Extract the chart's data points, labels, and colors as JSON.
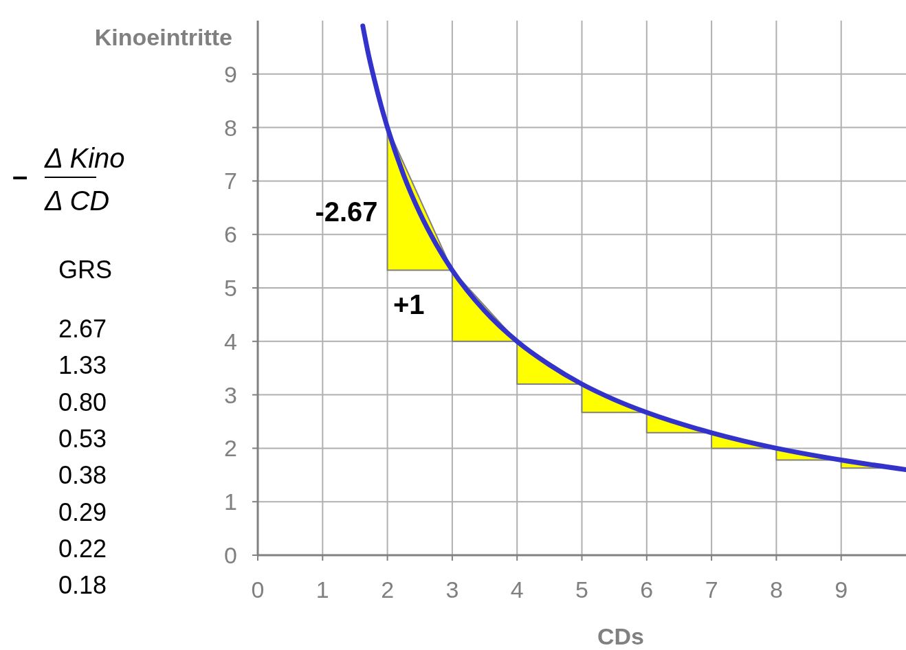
{
  "chart_data": {
    "type": "line",
    "xlabel": "CDs",
    "ylabel": "Kinoeintritte",
    "xlim": [
      0,
      10
    ],
    "ylim": [
      0,
      10
    ],
    "xticks": [
      0,
      1,
      2,
      3,
      4,
      5,
      6,
      7,
      8,
      9
    ],
    "yticks": [
      0,
      1,
      2,
      3,
      4,
      5,
      6,
      7,
      8,
      9
    ],
    "grid": true,
    "series": [
      {
        "type": "area",
        "color": "#ffff00",
        "x": [
          2,
          3,
          4,
          5,
          6,
          7,
          8,
          9,
          9.8
        ],
        "values": [
          8,
          5.33,
          4,
          3.2,
          2.67,
          2.29,
          2,
          1.78,
          1.63
        ]
      },
      {
        "color": "#3333cc",
        "x": [
          1.62,
          1.7,
          1.8,
          1.9,
          2,
          2.25,
          2.5,
          2.75,
          3,
          3.5,
          4,
          4.5,
          5,
          5.5,
          6,
          7,
          8,
          9,
          10
        ],
        "values": [
          9.9,
          9.41,
          8.89,
          8.42,
          8,
          7.11,
          6.4,
          5.82,
          5.33,
          4.57,
          4,
          3.56,
          3.2,
          2.91,
          2.67,
          2.29,
          2,
          1.78,
          1.6
        ]
      }
    ],
    "annotations": [
      {
        "text": "-2.67",
        "x": 2,
        "y": 6.4
      },
      "+1",
      "–",
      "Δ Kino",
      "Δ CD",
      "GRS",
      "2.67",
      "1.33",
      "0.80",
      "0.53",
      "0.38",
      "0.29",
      "0.22",
      "0.18"
    ]
  }
}
